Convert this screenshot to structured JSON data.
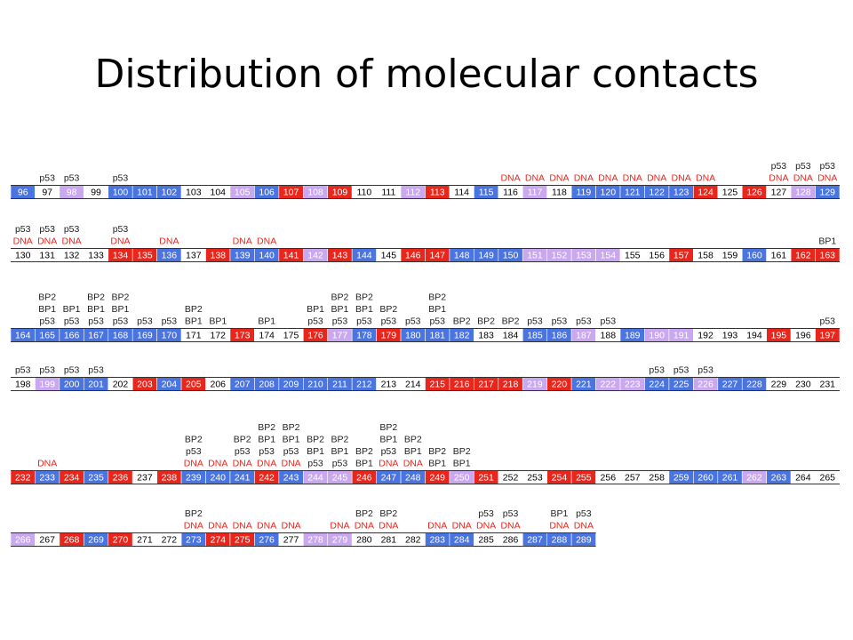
{
  "title": "Distribution of molecular contacts",
  "label_colors": {
    "DNA": "#e8261c"
  },
  "cell_colors": {
    "blue": "#4a74e0",
    "lav": "#c9a8f0",
    "red": "#e8261c",
    "white": "#ffffff"
  },
  "rows": [
    {
      "cells": [
        {
          "n": 96,
          "c": "blue"
        },
        {
          "n": 97,
          "c": "white",
          "a": [
            "p53"
          ]
        },
        {
          "n": 98,
          "c": "lav",
          "a": [
            "p53"
          ]
        },
        {
          "n": 99,
          "c": "white"
        },
        {
          "n": 100,
          "c": "blue",
          "a": [
            "p53"
          ]
        },
        {
          "n": 101,
          "c": "blue"
        },
        {
          "n": 102,
          "c": "blue"
        },
        {
          "n": 103,
          "c": "white"
        },
        {
          "n": 104,
          "c": "white"
        },
        {
          "n": 105,
          "c": "lav"
        },
        {
          "n": 106,
          "c": "blue"
        },
        {
          "n": 107,
          "c": "red"
        },
        {
          "n": 108,
          "c": "lav"
        },
        {
          "n": 109,
          "c": "red"
        },
        {
          "n": 110,
          "c": "white"
        },
        {
          "n": 111,
          "c": "white"
        },
        {
          "n": 112,
          "c": "lav"
        },
        {
          "n": 113,
          "c": "red"
        },
        {
          "n": 114,
          "c": "white"
        },
        {
          "n": 115,
          "c": "blue"
        },
        {
          "n": 116,
          "c": "white",
          "a": [
            "DNA"
          ]
        },
        {
          "n": 117,
          "c": "lav",
          "a": [
            "DNA"
          ]
        },
        {
          "n": 118,
          "c": "white",
          "a": [
            "DNA"
          ]
        },
        {
          "n": 119,
          "c": "blue",
          "a": [
            "DNA"
          ]
        },
        {
          "n": 120,
          "c": "blue",
          "a": [
            "DNA"
          ]
        },
        {
          "n": 121,
          "c": "blue",
          "a": [
            "DNA"
          ]
        },
        {
          "n": 122,
          "c": "blue",
          "a": [
            "DNA"
          ]
        },
        {
          "n": 123,
          "c": "blue",
          "a": [
            "DNA"
          ]
        },
        {
          "n": 124,
          "c": "red",
          "a": [
            "DNA"
          ]
        },
        {
          "n": 125,
          "c": "white"
        },
        {
          "n": 126,
          "c": "red"
        },
        {
          "n": 127,
          "c": "white",
          "a": [
            "p53",
            "DNA"
          ]
        },
        {
          "n": 128,
          "c": "lav",
          "a": [
            "p53",
            "DNA"
          ]
        },
        {
          "n": 129,
          "c": "blue",
          "a": [
            "p53",
            "DNA"
          ]
        }
      ]
    },
    {
      "cells": [
        {
          "n": 130,
          "c": "white",
          "a": [
            "p53",
            "DNA"
          ]
        },
        {
          "n": 131,
          "c": "white",
          "a": [
            "p53",
            "DNA"
          ]
        },
        {
          "n": 132,
          "c": "white",
          "a": [
            "p53",
            "DNA"
          ]
        },
        {
          "n": 133,
          "c": "white"
        },
        {
          "n": 134,
          "c": "red",
          "a": [
            "p53",
            "DNA"
          ]
        },
        {
          "n": 135,
          "c": "red"
        },
        {
          "n": 136,
          "c": "blue",
          "a": [
            "DNA"
          ]
        },
        {
          "n": 137,
          "c": "white"
        },
        {
          "n": 138,
          "c": "red"
        },
        {
          "n": 139,
          "c": "blue",
          "a": [
            "DNA"
          ]
        },
        {
          "n": 140,
          "c": "blue",
          "a": [
            "DNA"
          ]
        },
        {
          "n": 141,
          "c": "red"
        },
        {
          "n": 142,
          "c": "lav"
        },
        {
          "n": 143,
          "c": "red"
        },
        {
          "n": 144,
          "c": "blue"
        },
        {
          "n": 145,
          "c": "white"
        },
        {
          "n": 146,
          "c": "red"
        },
        {
          "n": 147,
          "c": "red"
        },
        {
          "n": 148,
          "c": "blue"
        },
        {
          "n": 149,
          "c": "blue"
        },
        {
          "n": 150,
          "c": "blue"
        },
        {
          "n": 151,
          "c": "lav"
        },
        {
          "n": 152,
          "c": "lav"
        },
        {
          "n": 153,
          "c": "lav"
        },
        {
          "n": 154,
          "c": "lav"
        },
        {
          "n": 155,
          "c": "white"
        },
        {
          "n": 156,
          "c": "white"
        },
        {
          "n": 157,
          "c": "red"
        },
        {
          "n": 158,
          "c": "white"
        },
        {
          "n": 159,
          "c": "white"
        },
        {
          "n": 160,
          "c": "blue"
        },
        {
          "n": 161,
          "c": "white"
        },
        {
          "n": 162,
          "c": "red"
        },
        {
          "n": 163,
          "c": "red",
          "a": [
            "BP1"
          ]
        }
      ]
    },
    {
      "cells": [
        {
          "n": 164,
          "c": "blue"
        },
        {
          "n": 165,
          "c": "blue",
          "a": [
            "BP2",
            "BP1",
            "p53"
          ]
        },
        {
          "n": 166,
          "c": "blue",
          "a": [
            "BP1",
            "p53"
          ]
        },
        {
          "n": 167,
          "c": "blue",
          "a": [
            "BP2",
            "BP1",
            "p53"
          ]
        },
        {
          "n": 168,
          "c": "blue",
          "a": [
            "BP2",
            "BP1",
            "p53"
          ]
        },
        {
          "n": 169,
          "c": "blue",
          "a": [
            "p53"
          ]
        },
        {
          "n": 170,
          "c": "blue",
          "a": [
            "p53"
          ]
        },
        {
          "n": 171,
          "c": "white",
          "a": [
            "BP2",
            "BP1"
          ]
        },
        {
          "n": 172,
          "c": "white",
          "a": [
            "BP1"
          ]
        },
        {
          "n": 173,
          "c": "red"
        },
        {
          "n": 174,
          "c": "white",
          "a": [
            "BP1"
          ]
        },
        {
          "n": 175,
          "c": "white"
        },
        {
          "n": 176,
          "c": "red",
          "a": [
            "BP1",
            "p53"
          ]
        },
        {
          "n": 177,
          "c": "lav",
          "a": [
            "BP2",
            "BP1",
            "p53"
          ]
        },
        {
          "n": 178,
          "c": "blue",
          "a": [
            "BP2",
            "BP1",
            "p53"
          ]
        },
        {
          "n": 179,
          "c": "red",
          "a": [
            "BP2",
            "p53"
          ]
        },
        {
          "n": 180,
          "c": "blue",
          "a": [
            "p53"
          ]
        },
        {
          "n": 181,
          "c": "blue",
          "a": [
            "BP2",
            "BP1",
            "p53"
          ]
        },
        {
          "n": 182,
          "c": "blue",
          "a": [
            "BP2"
          ]
        },
        {
          "n": 183,
          "c": "white",
          "a": [
            "BP2"
          ]
        },
        {
          "n": 184,
          "c": "white",
          "a": [
            "BP2"
          ]
        },
        {
          "n": 185,
          "c": "blue",
          "a": [
            "p53"
          ]
        },
        {
          "n": 186,
          "c": "blue",
          "a": [
            "p53"
          ]
        },
        {
          "n": 187,
          "c": "lav",
          "a": [
            "p53"
          ]
        },
        {
          "n": 188,
          "c": "white",
          "a": [
            "p53"
          ]
        },
        {
          "n": 189,
          "c": "blue"
        },
        {
          "n": 190,
          "c": "lav"
        },
        {
          "n": 191,
          "c": "lav"
        },
        {
          "n": 192,
          "c": "white"
        },
        {
          "n": 193,
          "c": "white"
        },
        {
          "n": 194,
          "c": "white"
        },
        {
          "n": 195,
          "c": "red"
        },
        {
          "n": 196,
          "c": "white"
        },
        {
          "n": 197,
          "c": "red",
          "a": [
            "p53"
          ]
        }
      ]
    },
    {
      "cells": [
        {
          "n": 198,
          "c": "white",
          "a": [
            "p53"
          ]
        },
        {
          "n": 199,
          "c": "lav",
          "a": [
            "p53"
          ]
        },
        {
          "n": 200,
          "c": "blue",
          "a": [
            "p53"
          ]
        },
        {
          "n": 201,
          "c": "blue",
          "a": [
            "p53"
          ]
        },
        {
          "n": 202,
          "c": "white"
        },
        {
          "n": 203,
          "c": "red"
        },
        {
          "n": 204,
          "c": "blue"
        },
        {
          "n": 205,
          "c": "red"
        },
        {
          "n": 206,
          "c": "white"
        },
        {
          "n": 207,
          "c": "blue"
        },
        {
          "n": 208,
          "c": "blue"
        },
        {
          "n": 209,
          "c": "blue"
        },
        {
          "n": 210,
          "c": "blue"
        },
        {
          "n": 211,
          "c": "blue"
        },
        {
          "n": 212,
          "c": "blue"
        },
        {
          "n": 213,
          "c": "white"
        },
        {
          "n": 214,
          "c": "white"
        },
        {
          "n": 215,
          "c": "red"
        },
        {
          "n": 216,
          "c": "red"
        },
        {
          "n": 217,
          "c": "red"
        },
        {
          "n": 218,
          "c": "red"
        },
        {
          "n": 219,
          "c": "lav"
        },
        {
          "n": 220,
          "c": "red"
        },
        {
          "n": 221,
          "c": "blue"
        },
        {
          "n": 222,
          "c": "lav"
        },
        {
          "n": 223,
          "c": "lav"
        },
        {
          "n": 224,
          "c": "blue",
          "a": [
            "p53"
          ]
        },
        {
          "n": 225,
          "c": "blue",
          "a": [
            "p53"
          ]
        },
        {
          "n": 226,
          "c": "lav",
          "a": [
            "p53"
          ]
        },
        {
          "n": 227,
          "c": "blue"
        },
        {
          "n": 228,
          "c": "blue"
        },
        {
          "n": 229,
          "c": "white"
        },
        {
          "n": 230,
          "c": "white"
        },
        {
          "n": 231,
          "c": "white"
        }
      ]
    },
    {
      "cells": [
        {
          "n": 232,
          "c": "red"
        },
        {
          "n": 233,
          "c": "blue",
          "a": [
            "DNA"
          ]
        },
        {
          "n": 234,
          "c": "red"
        },
        {
          "n": 235,
          "c": "blue"
        },
        {
          "n": 236,
          "c": "red"
        },
        {
          "n": 237,
          "c": "white"
        },
        {
          "n": 238,
          "c": "red"
        },
        {
          "n": 239,
          "c": "blue",
          "a": [
            "BP2",
            "p53",
            "DNA"
          ]
        },
        {
          "n": 240,
          "c": "blue",
          "a": [
            "DNA"
          ]
        },
        {
          "n": 241,
          "c": "blue",
          "a": [
            "BP2",
            "p53",
            "DNA"
          ]
        },
        {
          "n": 242,
          "c": "red",
          "a": [
            "BP2",
            "BP1",
            "p53",
            "DNA"
          ]
        },
        {
          "n": 243,
          "c": "blue",
          "a": [
            "BP2",
            "BP1",
            "p53",
            "DNA"
          ]
        },
        {
          "n": 244,
          "c": "lav",
          "a": [
            "BP2",
            "BP1",
            "p53"
          ]
        },
        {
          "n": 245,
          "c": "lav",
          "a": [
            "BP2",
            "BP1",
            "p53"
          ]
        },
        {
          "n": 246,
          "c": "red",
          "a": [
            "BP2",
            "BP1"
          ]
        },
        {
          "n": 247,
          "c": "blue",
          "a": [
            "BP2",
            "BP1",
            "p53",
            "DNA"
          ]
        },
        {
          "n": 248,
          "c": "blue",
          "a": [
            "BP2",
            "BP1",
            "DNA"
          ]
        },
        {
          "n": 249,
          "c": "red",
          "a": [
            "BP2",
            "BP1"
          ]
        },
        {
          "n": 250,
          "c": "lav",
          "a": [
            "BP2",
            "BP1"
          ]
        },
        {
          "n": 251,
          "c": "red"
        },
        {
          "n": 252,
          "c": "white"
        },
        {
          "n": 253,
          "c": "white"
        },
        {
          "n": 254,
          "c": "red"
        },
        {
          "n": 255,
          "c": "red"
        },
        {
          "n": 256,
          "c": "white"
        },
        {
          "n": 257,
          "c": "white"
        },
        {
          "n": 258,
          "c": "white"
        },
        {
          "n": 259,
          "c": "blue"
        },
        {
          "n": 260,
          "c": "blue"
        },
        {
          "n": 261,
          "c": "blue"
        },
        {
          "n": 262,
          "c": "lav"
        },
        {
          "n": 263,
          "c": "blue"
        },
        {
          "n": 264,
          "c": "white"
        },
        {
          "n": 265,
          "c": "white"
        }
      ]
    },
    {
      "cells": [
        {
          "n": 266,
          "c": "lav"
        },
        {
          "n": 267,
          "c": "white"
        },
        {
          "n": 268,
          "c": "red"
        },
        {
          "n": 269,
          "c": "blue"
        },
        {
          "n": 270,
          "c": "red"
        },
        {
          "n": 271,
          "c": "white"
        },
        {
          "n": 272,
          "c": "white"
        },
        {
          "n": 273,
          "c": "blue",
          "a": [
            "BP2",
            "DNA"
          ]
        },
        {
          "n": 274,
          "c": "red",
          "a": [
            "DNA"
          ]
        },
        {
          "n": 275,
          "c": "red",
          "a": [
            "DNA"
          ]
        },
        {
          "n": 276,
          "c": "blue",
          "a": [
            "DNA"
          ]
        },
        {
          "n": 277,
          "c": "white",
          "a": [
            "DNA"
          ]
        },
        {
          "n": 278,
          "c": "lav"
        },
        {
          "n": 279,
          "c": "lav",
          "a": [
            "DNA"
          ]
        },
        {
          "n": 280,
          "c": "white",
          "a": [
            "BP2",
            "DNA"
          ]
        },
        {
          "n": 281,
          "c": "white",
          "a": [
            "BP2",
            "DNA"
          ]
        },
        {
          "n": 282,
          "c": "white"
        },
        {
          "n": 283,
          "c": "blue",
          "a": [
            "DNA"
          ]
        },
        {
          "n": 284,
          "c": "blue",
          "a": [
            "DNA"
          ]
        },
        {
          "n": 285,
          "c": "white",
          "a": [
            "p53",
            "DNA"
          ]
        },
        {
          "n": 286,
          "c": "white",
          "a": [
            "p53",
            "DNA"
          ]
        },
        {
          "n": 287,
          "c": "blue"
        },
        {
          "n": 288,
          "c": "blue",
          "a": [
            "BP1",
            "DNA"
          ]
        },
        {
          "n": 289,
          "c": "blue",
          "a": [
            "p53",
            "DNA"
          ]
        }
      ]
    }
  ]
}
